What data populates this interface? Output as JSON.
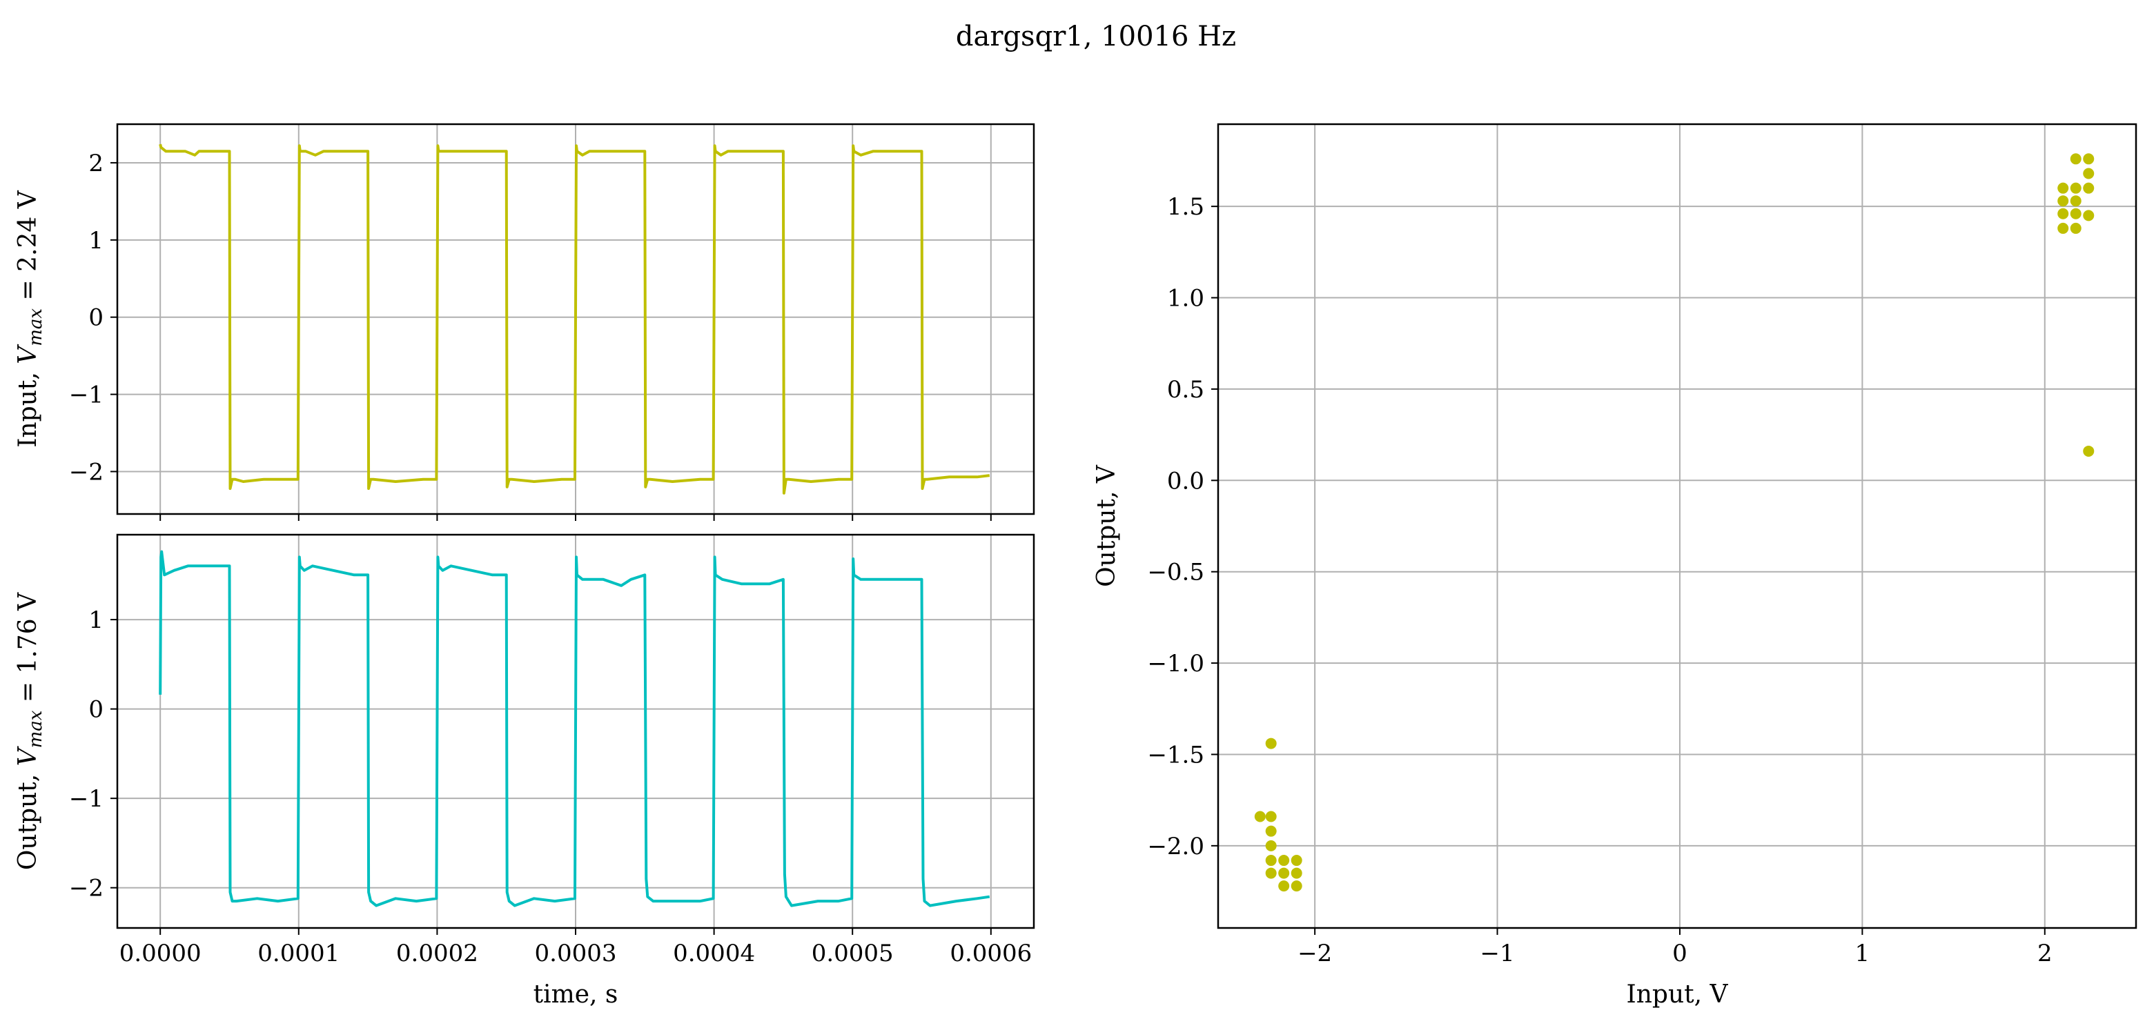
{
  "figure": {
    "title": "dargsqr1, 10016 Hz"
  },
  "chart_data": [
    {
      "id": "input-time",
      "type": "line",
      "ylabel": "Input, $V_{max}$ = 2.24 V",
      "xlabel": "",
      "xlim": [
        -3.1e-05,
        0.000631
      ],
      "ylim": [
        -2.55,
        2.5
      ],
      "xticks": [
        0,
        0.0001,
        0.0002,
        0.0003,
        0.0004,
        0.0005,
        0.0006
      ],
      "xtick_labels": [
        "",
        "",
        "",
        "",
        "",
        "",
        ""
      ],
      "yticks": [
        -2,
        -1,
        0,
        1,
        2
      ],
      "ytick_labels": [
        "−2",
        "−1",
        "0",
        "1",
        "2"
      ],
      "grid": true,
      "series": [
        {
          "color": "#bfbf00",
          "x": [
            0.0,
            5e-07,
            4e-06,
            1.8e-05,
            2.5e-05,
            2.8e-05,
            3.5e-05,
            5e-05,
            5.05e-05,
            5.2e-05,
            5.4e-05,
            6e-05,
            7.5e-05,
            9.5e-05,
            9.95e-05,
            0.0001005,
            0.000101,
            0.000105,
            0.000112,
            0.000118,
            0.000125,
            0.000135,
            0.00015,
            0.0001505,
            0.000152,
            0.000154,
            0.00017,
            0.00019,
            0.0001995,
            0.0002005,
            0.000201,
            0.00021,
            0.000228,
            0.000235,
            0.00025,
            0.0002505,
            0.000252,
            0.000254,
            0.00027,
            0.00029,
            0.0002995,
            0.0003005,
            0.000301,
            0.000305,
            0.00031,
            0.00033,
            0.00035,
            0.0003505,
            0.000352,
            0.000354,
            0.00037,
            0.00039,
            0.0003995,
            0.0004005,
            0.000401,
            0.000405,
            0.00041,
            0.00043,
            0.00045,
            0.0004505,
            0.000452,
            0.000454,
            0.00047,
            0.00049,
            0.0004995,
            0.0005005,
            0.000501,
            0.000506,
            0.000515,
            0.00053,
            0.00055,
            0.0005505,
            0.000552,
            0.000554,
            0.00057,
            0.00059,
            0.000599
          ],
          "y": [
            2.24,
            2.2,
            2.15,
            2.15,
            2.1,
            2.15,
            2.15,
            2.15,
            -2.22,
            -2.1,
            -2.1,
            -2.13,
            -2.1,
            -2.1,
            -2.1,
            2.22,
            2.15,
            2.15,
            2.1,
            2.15,
            2.15,
            2.15,
            2.15,
            -2.22,
            -2.1,
            -2.1,
            -2.13,
            -2.1,
            -2.1,
            2.22,
            2.15,
            2.15,
            2.15,
            2.15,
            2.15,
            -2.2,
            -2.1,
            -2.1,
            -2.13,
            -2.1,
            -2.1,
            2.22,
            2.15,
            2.1,
            2.15,
            2.15,
            2.15,
            -2.2,
            -2.1,
            -2.1,
            -2.13,
            -2.1,
            -2.1,
            2.22,
            2.15,
            2.1,
            2.15,
            2.15,
            2.15,
            -2.28,
            -2.1,
            -2.1,
            -2.13,
            -2.1,
            -2.1,
            2.22,
            2.15,
            2.1,
            2.15,
            2.15,
            2.15,
            -2.22,
            -2.1,
            -2.1,
            -2.07,
            -2.07,
            -2.05
          ]
        }
      ]
    },
    {
      "id": "output-time",
      "type": "line",
      "ylabel": "Output, $V_{max}$ = 1.76 V",
      "xlabel": "time, s",
      "xlim": [
        -3.1e-05,
        0.000631
      ],
      "ylim": [
        -2.45,
        1.95
      ],
      "xticks": [
        0,
        0.0001,
        0.0002,
        0.0003,
        0.0004,
        0.0005,
        0.0006
      ],
      "xtick_labels": [
        "0.0000",
        "0.0001",
        "0.0002",
        "0.0003",
        "0.0004",
        "0.0005",
        "0.0006"
      ],
      "yticks": [
        -2,
        -1,
        0,
        1
      ],
      "ytick_labels": [
        "−2",
        "−1",
        "0",
        "1"
      ],
      "grid": true,
      "series": [
        {
          "color": "#00bfbf",
          "x": [
            0.0,
            5e-07,
            1e-06,
            3e-06,
            1e-05,
            2e-05,
            3.5e-05,
            5e-05,
            5.05e-05,
            5.2e-05,
            5.5e-05,
            7e-05,
            8.5e-05,
            9.95e-05,
            0.0001005,
            0.000101,
            0.000104,
            0.00011,
            0.000125,
            0.00014,
            0.00015,
            0.0001505,
            0.000152,
            0.000156,
            0.00017,
            0.000185,
            0.0001995,
            0.0002005,
            0.000201,
            0.000204,
            0.00021,
            0.000225,
            0.00024,
            0.00025,
            0.0002505,
            0.000252,
            0.000256,
            0.00027,
            0.000285,
            0.0002995,
            0.0003005,
            0.000301,
            0.000305,
            0.00032,
            0.000333,
            0.00034,
            0.00035,
            0.000351,
            0.000352,
            0.000356,
            0.000375,
            0.00039,
            0.0003995,
            0.0004005,
            0.000401,
            0.000406,
            0.00042,
            0.00044,
            0.00045,
            0.000451,
            0.000452,
            0.000456,
            0.000475,
            0.00049,
            0.0004995,
            0.0005005,
            0.000501,
            0.000506,
            0.00052,
            0.00054,
            0.00055,
            0.000551,
            0.000552,
            0.000556,
            0.000575,
            0.00059,
            0.000599
          ],
          "y": [
            0.16,
            1.7,
            1.76,
            1.5,
            1.55,
            1.6,
            1.6,
            1.6,
            -2.05,
            -2.15,
            -2.15,
            -2.12,
            -2.15,
            -2.12,
            1.7,
            1.6,
            1.55,
            1.6,
            1.55,
            1.5,
            1.5,
            -2.05,
            -2.15,
            -2.2,
            -2.12,
            -2.15,
            -2.12,
            1.7,
            1.6,
            1.55,
            1.6,
            1.55,
            1.5,
            1.5,
            -2.05,
            -2.15,
            -2.2,
            -2.12,
            -2.15,
            -2.12,
            1.7,
            1.5,
            1.45,
            1.45,
            1.38,
            1.45,
            1.5,
            -1.9,
            -2.1,
            -2.15,
            -2.15,
            -2.15,
            -2.12,
            1.7,
            1.5,
            1.45,
            1.4,
            1.4,
            1.45,
            -1.85,
            -2.1,
            -2.2,
            -2.15,
            -2.15,
            -2.12,
            1.68,
            1.5,
            1.45,
            1.45,
            1.45,
            1.45,
            -1.9,
            -2.15,
            -2.2,
            -2.15,
            -2.12,
            -2.1
          ]
        }
      ]
    },
    {
      "id": "input-output-scatter",
      "type": "scatter",
      "xlabel": "Input, V",
      "ylabel": "Output, V",
      "xlim": [
        -2.53,
        2.5
      ],
      "ylim": [
        -2.45,
        1.95
      ],
      "xticks": [
        -2,
        -1,
        0,
        1,
        2
      ],
      "xtick_labels": [
        "−2",
        "−1",
        "0",
        "1",
        "2"
      ],
      "yticks": [
        -2.0,
        -1.5,
        -1.0,
        -0.5,
        0.0,
        0.5,
        1.0,
        1.5
      ],
      "ytick_labels": [
        "−2.0",
        "−1.5",
        "−1.0",
        "−0.5",
        "0.0",
        "0.5",
        "1.0",
        "1.5"
      ],
      "grid": true,
      "series": [
        {
          "color": "#bfbf00",
          "points": [
            [
              2.1,
              1.6
            ],
            [
              2.1,
              1.53
            ],
            [
              2.1,
              1.46
            ],
            [
              2.1,
              1.38
            ],
            [
              2.17,
              1.6
            ],
            [
              2.17,
              1.53
            ],
            [
              2.17,
              1.46
            ],
            [
              2.17,
              1.38
            ],
            [
              2.17,
              1.76
            ],
            [
              2.24,
              1.76
            ],
            [
              2.24,
              1.68
            ],
            [
              2.24,
              1.6
            ],
            [
              2.24,
              1.45
            ],
            [
              2.24,
              0.16
            ],
            [
              -2.24,
              -1.44
            ],
            [
              -2.3,
              -1.84
            ],
            [
              -2.24,
              -1.84
            ],
            [
              -2.24,
              -1.92
            ],
            [
              -2.24,
              -2.0
            ],
            [
              -2.24,
              -2.08
            ],
            [
              -2.17,
              -2.08
            ],
            [
              -2.1,
              -2.08
            ],
            [
              -2.24,
              -2.15
            ],
            [
              -2.17,
              -2.15
            ],
            [
              -2.1,
              -2.15
            ],
            [
              -2.17,
              -2.22
            ],
            [
              -2.1,
              -2.22
            ]
          ]
        }
      ]
    }
  ]
}
